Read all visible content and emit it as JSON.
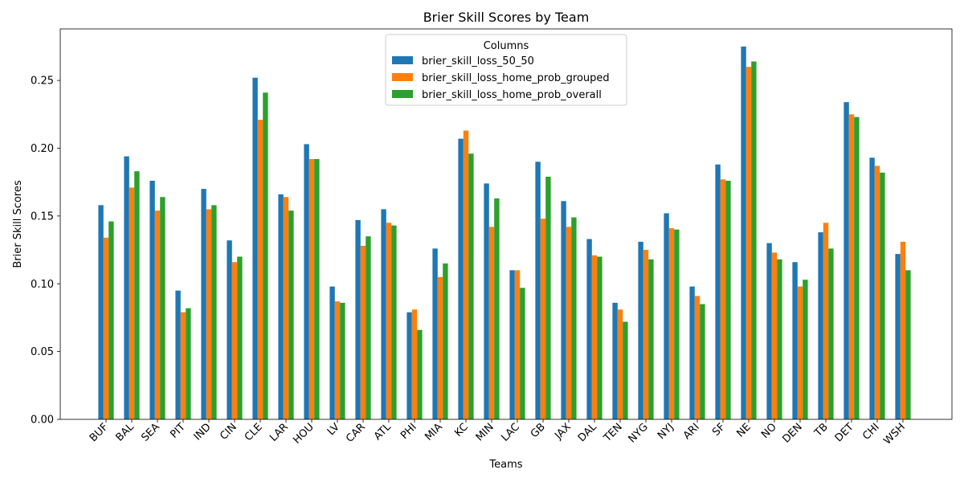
{
  "chart_data": {
    "type": "bar",
    "title": "Brier Skill Scores by Team",
    "xlabel": "Teams",
    "ylabel": "Brier Skill Scores",
    "ylim": [
      0,
      0.288
    ],
    "yticks": [
      "0.00",
      "0.05",
      "0.10",
      "0.15",
      "0.20",
      "0.25"
    ],
    "legend_title": "Columns",
    "legend_position": "top-center",
    "grid": false,
    "categories": [
      "BUF",
      "BAL",
      "SEA",
      "PIT",
      "IND",
      "CIN",
      "CLE",
      "LAR",
      "HOU",
      "LV",
      "CAR",
      "ATL",
      "PHI",
      "MIA",
      "KC",
      "MIN",
      "LAC",
      "GB",
      "JAX",
      "DAL",
      "TEN",
      "NYG",
      "NYJ",
      "ARI",
      "SF",
      "NE",
      "NO",
      "DEN",
      "TB",
      "DET",
      "CHI",
      "WSH"
    ],
    "series": [
      {
        "name": "brier_skill_loss_50_50",
        "color": "#1f77b4",
        "values": [
          0.158,
          0.194,
          0.176,
          0.095,
          0.17,
          0.132,
          0.252,
          0.166,
          0.203,
          0.098,
          0.147,
          0.155,
          0.079,
          0.126,
          0.207,
          0.174,
          0.11,
          0.19,
          0.161,
          0.133,
          0.086,
          0.131,
          0.152,
          0.098,
          0.188,
          0.275,
          0.13,
          0.116,
          0.138,
          0.234,
          0.193,
          0.122
        ]
      },
      {
        "name": "brier_skill_loss_home_prob_grouped",
        "color": "#ff7f0e",
        "values": [
          0.134,
          0.171,
          0.154,
          0.079,
          0.155,
          0.116,
          0.221,
          0.164,
          0.192,
          0.087,
          0.128,
          0.145,
          0.081,
          0.105,
          0.213,
          0.142,
          0.11,
          0.148,
          0.142,
          0.121,
          0.081,
          0.125,
          0.141,
          0.091,
          0.177,
          0.26,
          0.123,
          0.098,
          0.145,
          0.225,
          0.187,
          0.131
        ]
      },
      {
        "name": "brier_skill_loss_home_prob_overall",
        "color": "#2ca02c",
        "values": [
          0.146,
          0.183,
          0.164,
          0.082,
          0.158,
          0.12,
          0.241,
          0.154,
          0.192,
          0.086,
          0.135,
          0.143,
          0.066,
          0.115,
          0.196,
          0.163,
          0.097,
          0.179,
          0.149,
          0.12,
          0.072,
          0.118,
          0.14,
          0.085,
          0.176,
          0.264,
          0.118,
          0.103,
          0.126,
          0.223,
          0.182,
          0.11
        ]
      }
    ]
  }
}
